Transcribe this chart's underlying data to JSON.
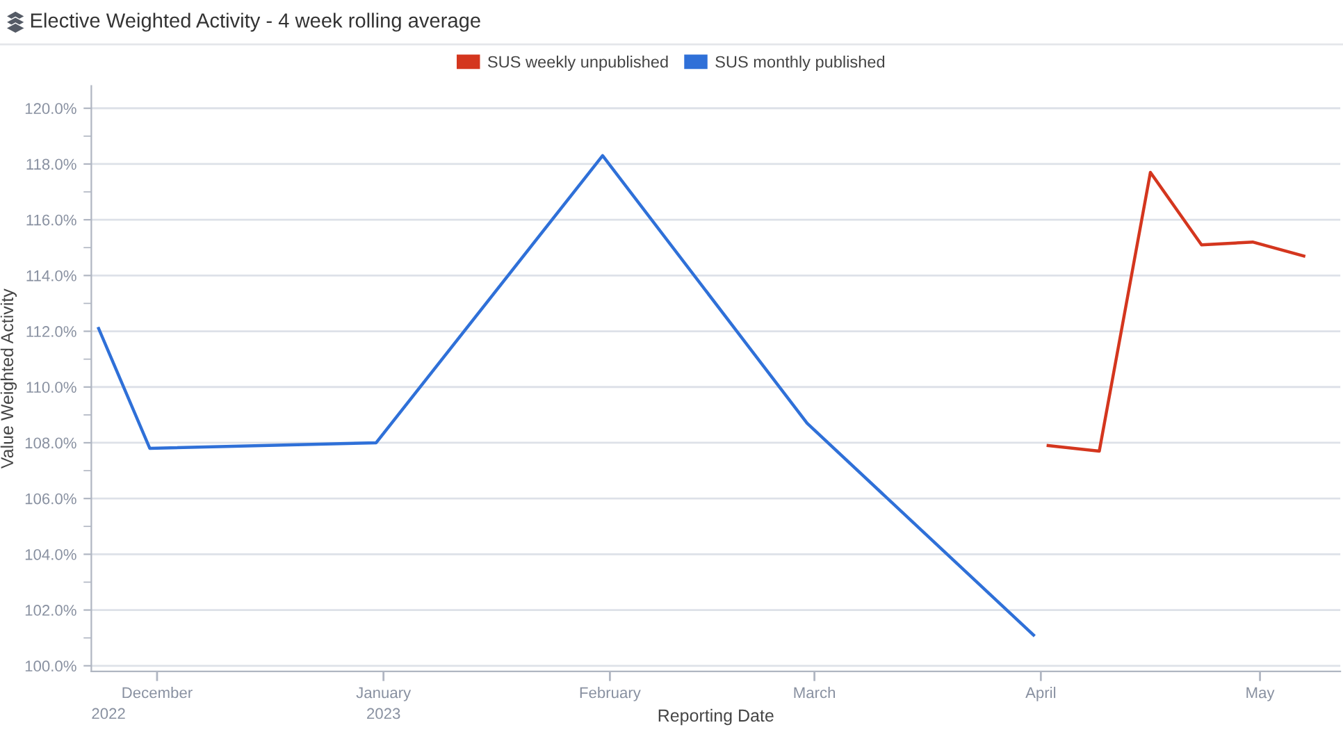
{
  "chart_data": {
    "type": "line",
    "title": "Elective Weighted Activity - 4 week rolling average",
    "xlabel": "Reporting Date",
    "ylabel": "Value Weighted Activity",
    "series": [
      {
        "name": "SUS weekly unpublished",
        "color": "#d4361e",
        "x": [
          "2023-04-02",
          "2023-04-09",
          "2023-04-16",
          "2023-04-23",
          "2023-04-30",
          "2023-05-07"
        ],
        "values": [
          107.9,
          107.7,
          117.7,
          115.1,
          115.2,
          114.7
        ]
      },
      {
        "name": "SUS monthly published",
        "color": "#2f70d8",
        "x": [
          "2022-11-23",
          "2022-11-30",
          "2022-12-31",
          "2023-01-31",
          "2023-02-28",
          "2023-03-31"
        ],
        "values": [
          112.1,
          107.8,
          108.0,
          118.3,
          108.7,
          101.1
        ]
      }
    ],
    "annotations": [
      "2022",
      "2023"
    ],
    "xlim": [
      "2022-11-22",
      "2023-05-12"
    ],
    "xticks": [
      {
        "value": "2022-12-01",
        "label": "December"
      },
      {
        "value": "2023-01-01",
        "label": "January"
      },
      {
        "value": "2023-02-01",
        "label": "February"
      },
      {
        "value": "2023-03-01",
        "label": "March"
      },
      {
        "value": "2023-04-01",
        "label": "April"
      },
      {
        "value": "2023-05-01",
        "label": "May"
      }
    ],
    "ylim": [
      99.8,
      120.8
    ],
    "yticks": [
      {
        "value": 100,
        "label": "100.0%"
      },
      {
        "value": 102,
        "label": "102.0%"
      },
      {
        "value": 104,
        "label": "104.0%"
      },
      {
        "value": 106,
        "label": "106.0%"
      },
      {
        "value": 108,
        "label": "108.0%"
      },
      {
        "value": 110,
        "label": "110.0%"
      },
      {
        "value": 112,
        "label": "112.0%"
      },
      {
        "value": 114,
        "label": "114.0%"
      },
      {
        "value": 116,
        "label": "116.0%"
      },
      {
        "value": 118,
        "label": "118.0%"
      },
      {
        "value": 120,
        "label": "120.0%"
      }
    ],
    "grid": "y",
    "legend": "top",
    "marker": "none",
    "line_style": "solid"
  }
}
